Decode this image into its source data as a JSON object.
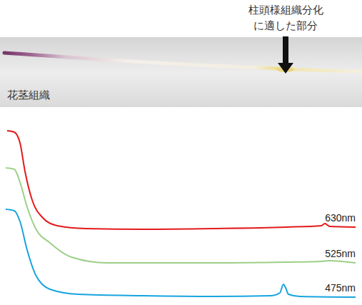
{
  "chart_data": {
    "type": "line",
    "tick_labels": false,
    "grid": false,
    "annotation": "柱頭様組織分化に適した部分",
    "image_label": "花茎組織",
    "xlim": [
      0,
      490
    ],
    "ylim": [
      0,
      240
    ],
    "series": [
      {
        "name": "630nm",
        "color": "#e31a1c",
        "x": [
          2,
          12,
          20,
          27,
          37,
          52,
          72,
          112,
          192,
          292,
          392,
          442,
          447,
          454,
          490
        ],
        "values": [
          237,
          235,
          220,
          180,
          140,
          115,
          104,
          100,
          99,
          100,
          102,
          104,
          107,
          103,
          102
        ]
      },
      {
        "name": "525nm",
        "color": "#9ccf86",
        "x": [
          0,
          12,
          20,
          30,
          42,
          62,
          92,
          142,
          292,
          392,
          442,
          452,
          490
        ],
        "values": [
          185,
          183,
          165,
          130,
          100,
          80,
          60,
          52,
          52,
          53,
          54,
          55,
          52
        ]
      },
      {
        "name": "475nm",
        "color": "#18a4e0",
        "x": [
          0,
          12,
          20,
          30,
          42,
          62,
          102,
          192,
          292,
          372,
          384,
          389,
          392,
          396,
          412,
          490
        ],
        "values": [
          127,
          125,
          110,
          70,
          35,
          15,
          8,
          6,
          5,
          6,
          10,
          22,
          17,
          8,
          5,
          4
        ]
      }
    ]
  }
}
